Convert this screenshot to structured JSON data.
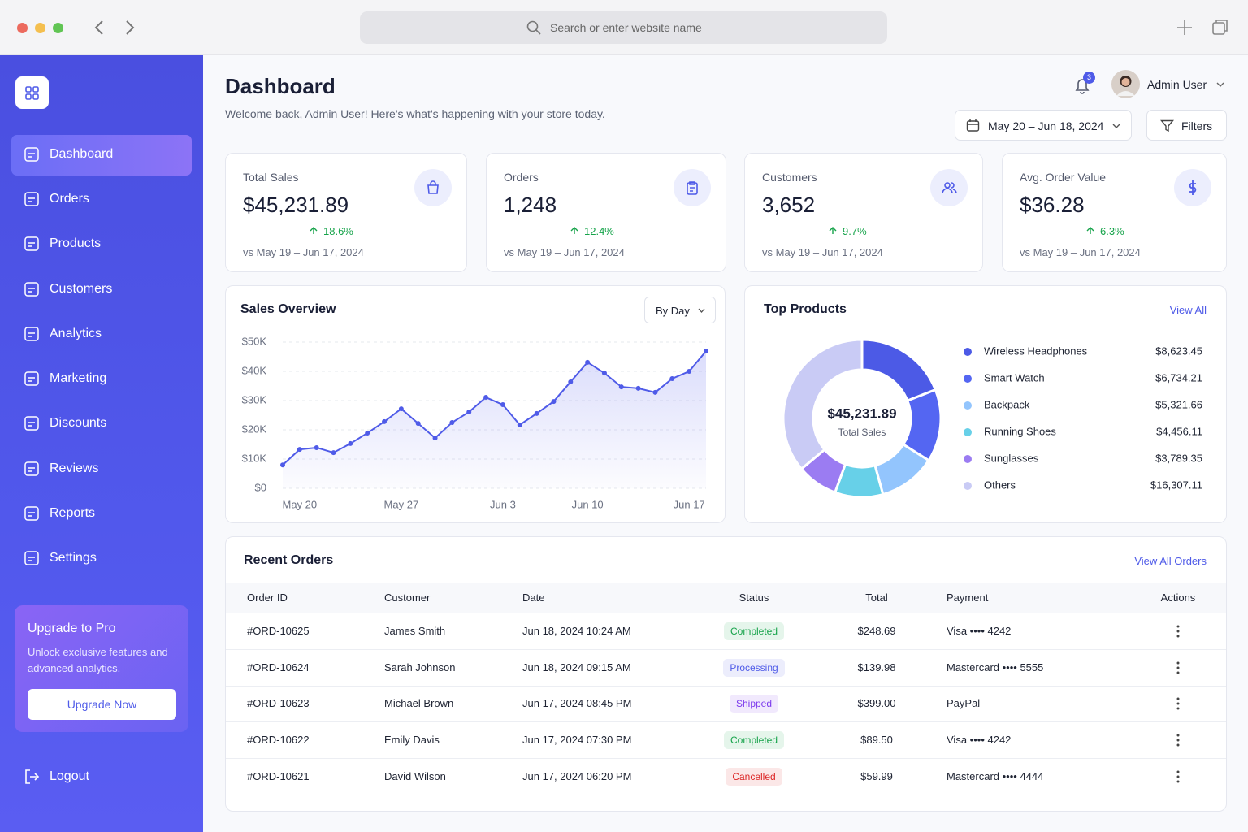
{
  "browser": {
    "search_placeholder": "Search or enter website name"
  },
  "sidebar": {
    "nav": [
      {
        "label": "Dashboard"
      },
      {
        "label": "Orders"
      },
      {
        "label": "Products"
      },
      {
        "label": "Customers"
      },
      {
        "label": "Analytics"
      },
      {
        "label": "Marketing"
      },
      {
        "label": "Discounts"
      },
      {
        "label": "Reviews"
      },
      {
        "label": "Reports"
      },
      {
        "label": "Settings"
      }
    ],
    "upgrade": {
      "title": "Upgrade to Pro",
      "text": "Unlock exclusive features and advanced analytics.",
      "button": "Upgrade Now"
    },
    "logout": "Logout"
  },
  "header": {
    "title": "Dashboard",
    "subtitle": "Welcome back, Admin User! Here's what's happening with your store today.",
    "notifications": "3",
    "user": "Admin User",
    "date_range": "May 20 – Jun 18, 2024",
    "filters": "Filters"
  },
  "kpis": [
    {
      "label": "Total Sales",
      "value": "$45,231.89",
      "change": "18.6%",
      "compare": "vs May 19 – Jun 17, 2024",
      "icon": "bag"
    },
    {
      "label": "Orders",
      "value": "1,248",
      "change": "12.4%",
      "compare": "vs May 19 – Jun 17, 2024",
      "icon": "clipboard"
    },
    {
      "label": "Customers",
      "value": "3,652",
      "change": "9.7%",
      "compare": "vs May 19 – Jun 17, 2024",
      "icon": "users"
    },
    {
      "label": "Avg. Order Value",
      "value": "$36.28",
      "change": "6.3%",
      "compare": "vs May 19 – Jun 17, 2024",
      "icon": "dollar"
    }
  ],
  "chart_data": [
    {
      "type": "line",
      "title": "Sales Overview",
      "control": "By Day",
      "categories": [
        null,
        "May 20",
        null,
        null,
        null,
        null,
        null,
        "May 27",
        null,
        null,
        null,
        null,
        null,
        "Jun 3",
        null,
        null,
        null,
        null,
        "Jun 10",
        null,
        null,
        null,
        null,
        null,
        "Jun 17",
        null
      ],
      "values": [
        8000,
        13300,
        13900,
        12200,
        15300,
        18900,
        22800,
        27200,
        22200,
        17200,
        22500,
        26100,
        31100,
        28600,
        21700,
        25600,
        29700,
        36400,
        43100,
        39400,
        34700,
        34200,
        32800,
        37500,
        40000,
        46900
      ],
      "color": "#4f5be8",
      "ylim": [
        0,
        50000
      ],
      "yticks": [
        {
          "value": 0,
          "label": "$0"
        },
        {
          "value": 10000,
          "label": "$10K"
        },
        {
          "value": 20000,
          "label": "$20K"
        },
        {
          "value": 30000,
          "label": "$30K"
        },
        {
          "value": 40000,
          "label": "$40K"
        },
        {
          "value": 50000,
          "label": "$50K"
        }
      ],
      "grid": true
    },
    {
      "type": "pie",
      "title": "Top Products",
      "link": "View All",
      "center_value": "$45,231.89",
      "center_label": "Total Sales",
      "categories": [
        "Wireless Headphones",
        "Smart Watch",
        "Backpack",
        "Running Shoes",
        "Sunglasses",
        "Others"
      ],
      "values": [
        8623.45,
        6734.21,
        5321.66,
        4456.11,
        3789.35,
        16307.11
      ],
      "value_labels": [
        "$8,623.45",
        "$6,734.21",
        "$5,321.66",
        "$4,456.11",
        "$3,789.35",
        "$16,307.11"
      ],
      "colors": [
        "#4c5ae6",
        "#5466f2",
        "#93c5fd",
        "#67d0e8",
        "#9b7cf2",
        "#c9cbf5"
      ]
    }
  ],
  "orders": {
    "title": "Recent Orders",
    "link": "View All Orders",
    "columns": [
      "Order ID",
      "Customer",
      "Date",
      "Status",
      "Total",
      "Payment",
      "Actions"
    ],
    "rows": [
      {
        "id": "#ORD-10625",
        "customer": "James Smith",
        "date": "Jun 18, 2024 10:24 AM",
        "status": "Completed",
        "status_color": "#16a34a",
        "total": "$248.69",
        "payment": "Visa •••• 4242"
      },
      {
        "id": "#ORD-10624",
        "customer": "Sarah Johnson",
        "date": "Jun 18, 2024 09:15 AM",
        "status": "Processing",
        "status_color": "#4f5be8",
        "total": "$139.98",
        "payment": "Mastercard •••• 5555"
      },
      {
        "id": "#ORD-10623",
        "customer": "Michael Brown",
        "date": "Jun 17, 2024 08:45 PM",
        "status": "Shipped",
        "status_color": "#7c3aed",
        "total": "$399.00",
        "payment": "PayPal"
      },
      {
        "id": "#ORD-10622",
        "customer": "Emily Davis",
        "date": "Jun 17, 2024 07:30 PM",
        "status": "Completed",
        "status_color": "#16a34a",
        "total": "$89.50",
        "payment": "Visa •••• 4242"
      },
      {
        "id": "#ORD-10621",
        "customer": "David Wilson",
        "date": "Jun 17, 2024 06:20 PM",
        "status": "Cancelled",
        "status_color": "#dc2626",
        "total": "$59.99",
        "payment": "Mastercard •••• 4444"
      }
    ]
  }
}
